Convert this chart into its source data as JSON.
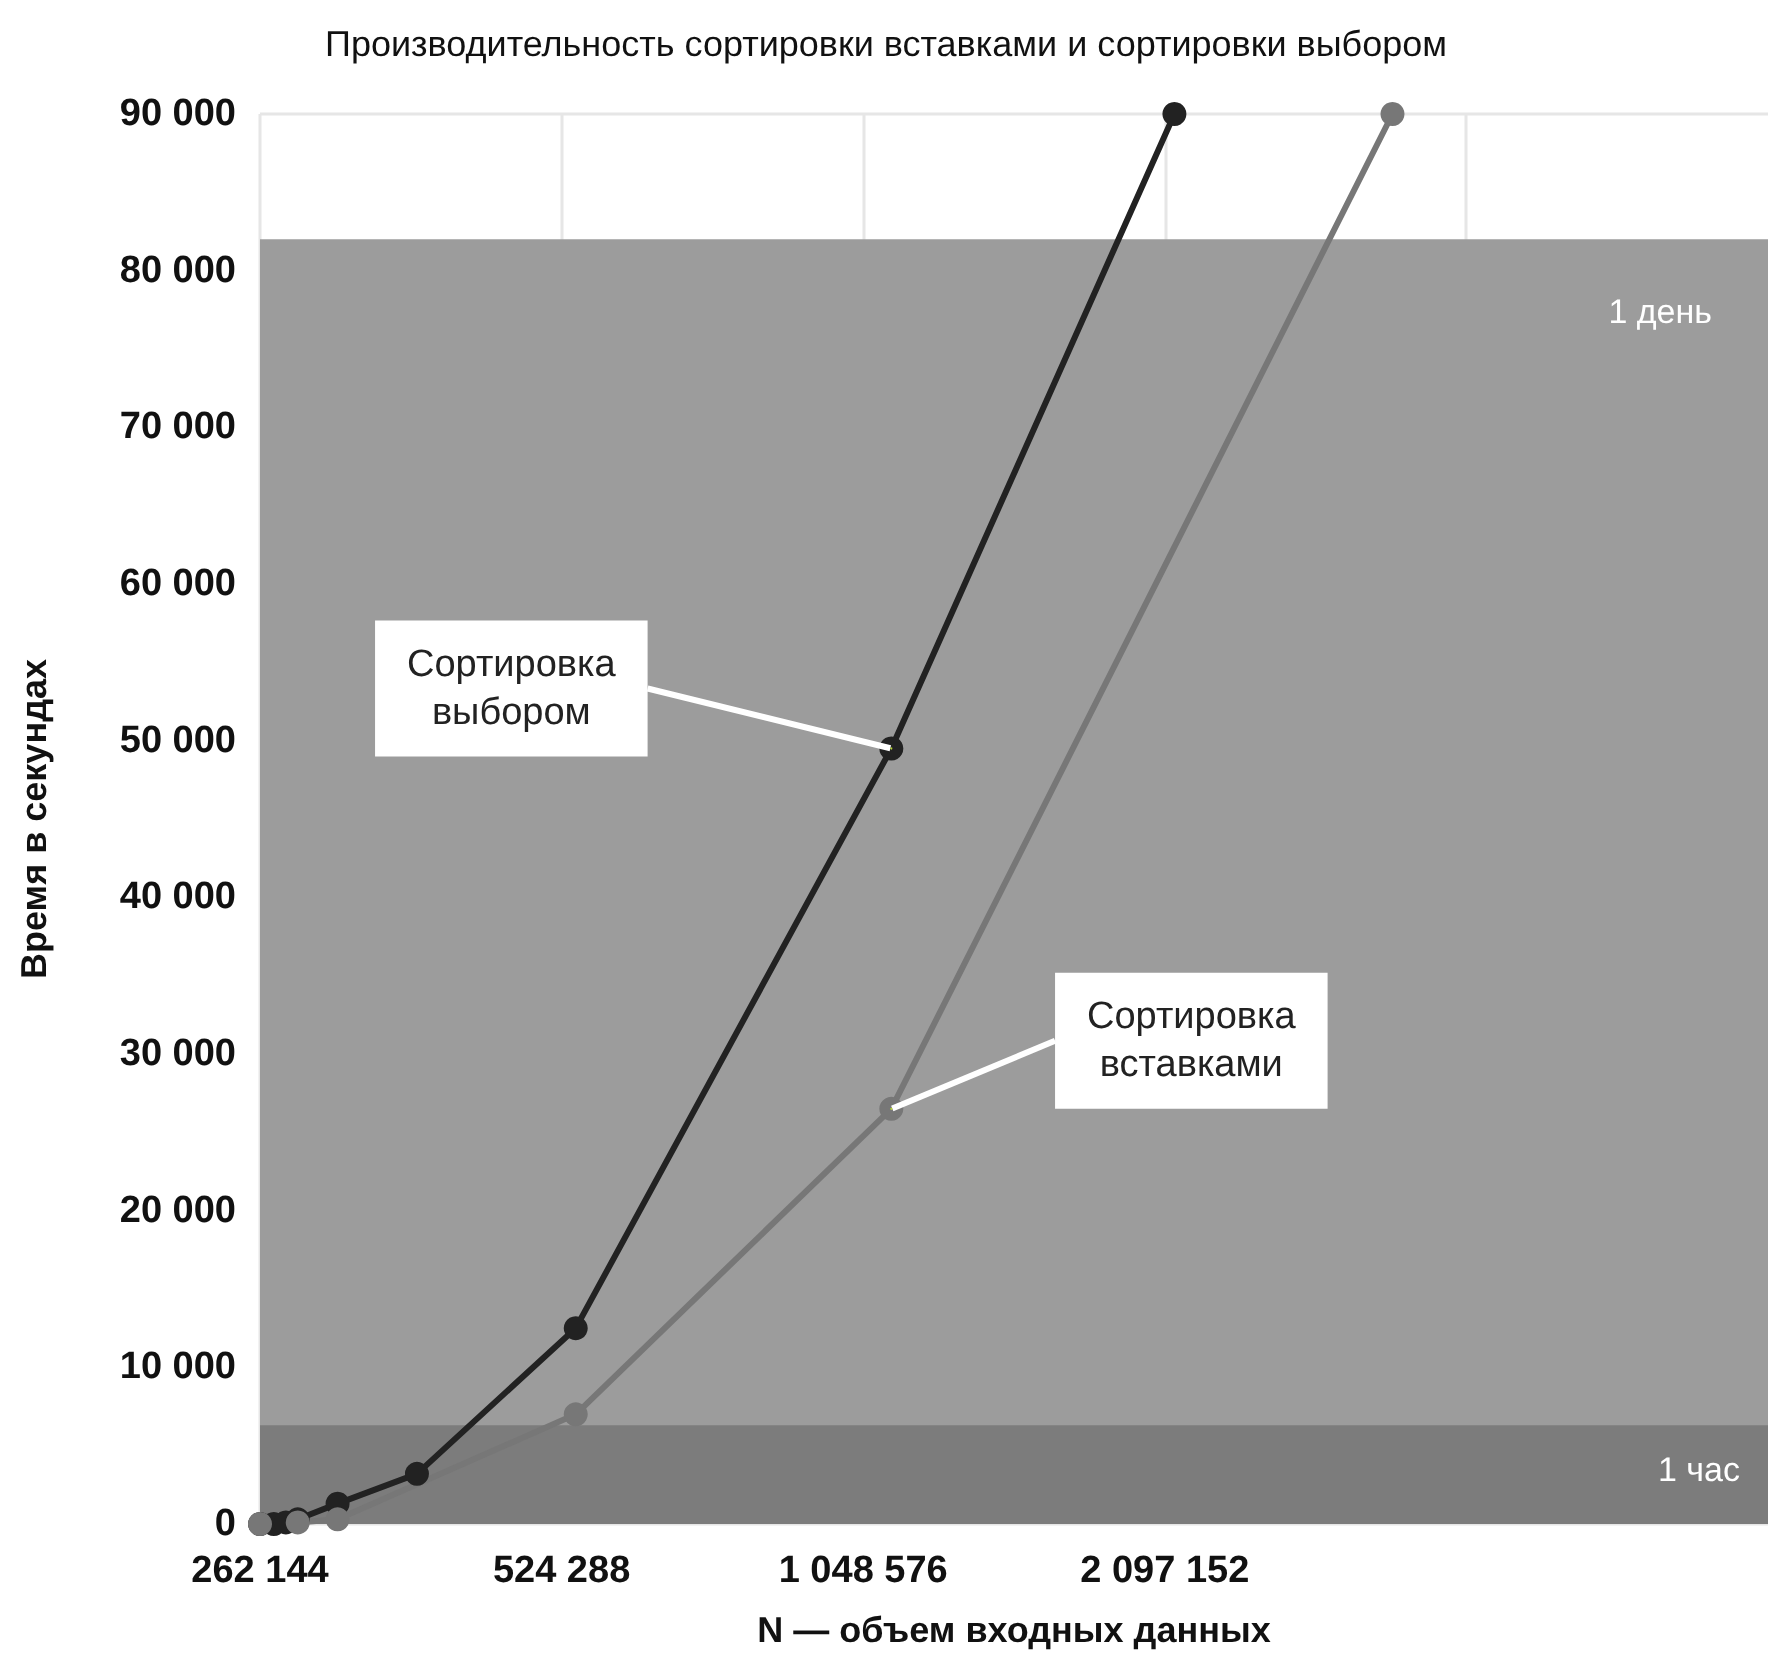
{
  "chart_data": {
    "type": "line",
    "title": "Производительность сортировки вставками и сортировки выбором",
    "xlabel": "N — объем входных данных",
    "ylabel": "Время в секундах",
    "log": "x",
    "xlim": [
      262144,
      8388608
    ],
    "xticks": [
      {
        "value": 262144,
        "label": "262 144"
      },
      {
        "value": 524288,
        "label": "524 288"
      },
      {
        "value": 1048576,
        "label": "1 048 576"
      },
      {
        "value": 2097152,
        "label": "2 097 152"
      },
      {
        "value": 4194304,
        "label": null
      }
    ],
    "ylim": [
      0,
      90000
    ],
    "yticks": [
      {
        "value": 0,
        "label": "0"
      },
      {
        "value": 10000,
        "label": "10 000"
      },
      {
        "value": 20000,
        "label": "20 000"
      },
      {
        "value": 30000,
        "label": "30 000"
      },
      {
        "value": 40000,
        "label": "40 000"
      },
      {
        "value": 50000,
        "label": "50 000"
      },
      {
        "value": 60000,
        "label": "60 000"
      },
      {
        "value": 70000,
        "label": "70 000"
      },
      {
        "value": 80000,
        "label": "80 000"
      },
      {
        "value": 90000,
        "label": "90 000"
      }
    ],
    "series": [
      {
        "color": "#222222",
        "x": [
          262144,
          270600,
          278200,
          285900,
          313300,
          376000,
          541600,
          1118600,
          2144000
        ],
        "values": [
          0,
          0,
          100,
          300,
          1300,
          3200,
          12500,
          49500,
          90000
        ]
      },
      {
        "color": "#777777",
        "x": [
          262144,
          285900,
          313300,
          541600,
          1118600,
          3539000
        ],
        "values": [
          0,
          100,
          300,
          7000,
          26500,
          90000
        ]
      }
    ],
    "bands": [
      {
        "axis": "y",
        "from": 0,
        "to": 82000,
        "label": "1 день",
        "color": "#9c9c9c"
      },
      {
        "axis": "y",
        "from": 0,
        "to": 6300,
        "label": "1 час",
        "color": "#7c7c7c"
      }
    ],
    "annotations": [
      {
        "text": "Сортировка\nвыбором",
        "x": 1118600,
        "y": 49500
      },
      {
        "text": "Сортировка\nвставками",
        "x": 1118600,
        "y": 26500
      }
    ],
    "grid": true,
    "marker": "circle",
    "line_style": "solid"
  }
}
